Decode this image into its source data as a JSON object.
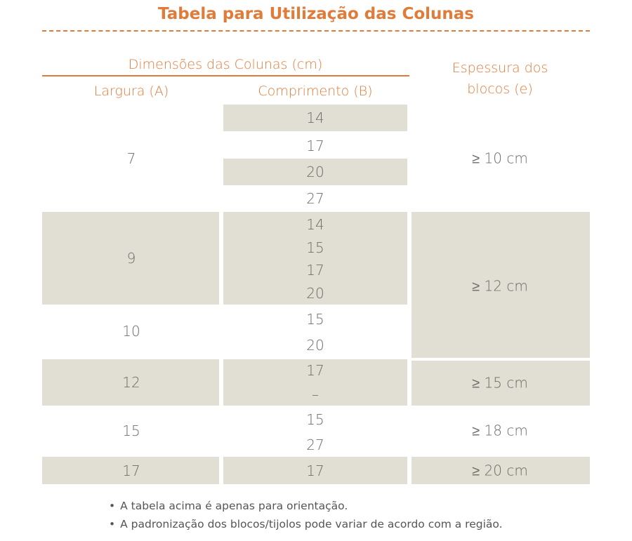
{
  "header": {
    "title": "Tabela para Utilização das Colunas"
  },
  "table": {
    "group_header": "Dimensões das Colunas (cm)",
    "columns": [
      "Largura (A)",
      "Comprimento (B)",
      "Espessura dos blocos (e)"
    ],
    "rows": [
      {
        "largura": 7,
        "comprimento": [
          14,
          17,
          20,
          27
        ]
      },
      {
        "largura": 9,
        "comprimento": [
          14,
          15,
          17,
          20
        ]
      },
      {
        "largura": 10,
        "comprimento": [
          15,
          20
        ]
      },
      {
        "largura": 12,
        "comprimento": [
          17,
          "–"
        ]
      },
      {
        "largura": 15,
        "comprimento": [
          15,
          27
        ]
      },
      {
        "largura": 17,
        "comprimento": [
          17
        ]
      }
    ],
    "espessura": [
      "≥ 10 cm",
      "≥ 12 cm",
      "≥ 15 cm",
      "≥ 18 cm",
      "≥ 20 cm"
    ]
  },
  "notes": [
    "A tabela acima é apenas para orientação.",
    "A padronização dos blocos/tijolos pode variar de acordo com a região."
  ]
}
